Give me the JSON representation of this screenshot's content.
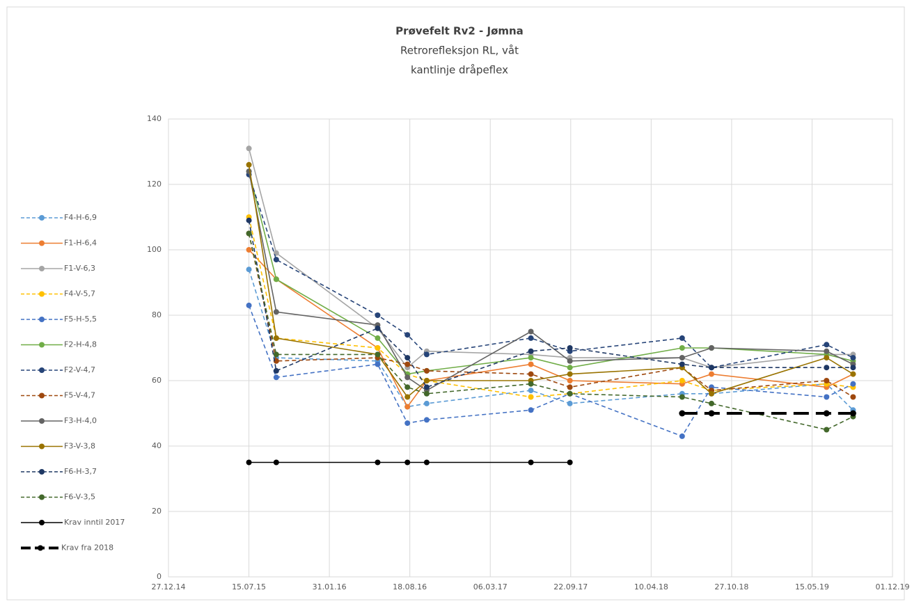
{
  "chart_data": {
    "type": "line",
    "title": "Prøvefelt Rv2 - Jømna",
    "subtitle": [
      "Retrorefleksjon RL, våt",
      "kantlinje dråpeflex"
    ],
    "x": [
      "2015-07-15",
      "2015-09-21",
      "2016-05-30",
      "2016-08-12",
      "2016-09-29",
      "2017-06-15",
      "2017-09-20",
      "2018-06-26",
      "2018-09-07",
      "2019-06-20",
      "2019-08-25"
    ],
    "xlim": [
      "2014-12-27",
      "2019-12-01"
    ],
    "xticks": [
      {
        "value": "2014-12-27",
        "label": "27.12.14"
      },
      {
        "value": "2015-07-15",
        "label": "15.07.15"
      },
      {
        "value": "2016-01-31",
        "label": "31.01.16"
      },
      {
        "value": "2016-08-18",
        "label": "18.08.16"
      },
      {
        "value": "2017-03-06",
        "label": "06.03.17"
      },
      {
        "value": "2017-09-22",
        "label": "22.09.17"
      },
      {
        "value": "2018-04-10",
        "label": "10.04.18"
      },
      {
        "value": "2018-10-27",
        "label": "27.10.18"
      },
      {
        "value": "2019-05-15",
        "label": "15.05.19"
      },
      {
        "value": "2019-12-01",
        "label": "01.12.19"
      }
    ],
    "ylim": [
      0,
      140
    ],
    "yticks": [
      0,
      20,
      40,
      60,
      80,
      100,
      120,
      140
    ],
    "grid": true,
    "legend": "left",
    "series": [
      {
        "name": "F4-H-6,9",
        "color": "#5b9bd5",
        "dashed": true,
        "values": [
          94,
          67,
          66,
          52,
          53,
          57,
          53,
          56,
          56,
          59,
          51
        ]
      },
      {
        "name": "F1-H-6,4",
        "color": "#ed7d31",
        "dashed": false,
        "values": [
          100,
          91,
          70,
          52,
          60,
          65,
          60,
          59,
          62,
          58,
          62
        ]
      },
      {
        "name": "F1-V-6,3",
        "color": "#a5a5a5",
        "dashed": false,
        "values": [
          131,
          99,
          76,
          64,
          69,
          68,
          67,
          67,
          64,
          68,
          68
        ]
      },
      {
        "name": "F4-V-5,7",
        "color": "#ffc000",
        "dashed": true,
        "values": [
          110,
          73,
          70,
          62,
          60,
          55,
          56,
          60,
          57,
          59,
          58
        ]
      },
      {
        "name": "F5-H-5,5",
        "color": "#4472c4",
        "dashed": true,
        "values": [
          83,
          61,
          65,
          47,
          48,
          51,
          56,
          43,
          58,
          55,
          59
        ]
      },
      {
        "name": "F2-H-4,8",
        "color": "#70ad47",
        "dashed": false,
        "values": [
          124,
          91,
          73,
          62,
          63,
          67,
          64,
          70,
          70,
          68,
          66
        ]
      },
      {
        "name": "F2-V-4,7",
        "color": "#264478",
        "dashed": true,
        "values": [
          123,
          97,
          80,
          74,
          68,
          73,
          69,
          73,
          64,
          71,
          67
        ]
      },
      {
        "name": "F5-V-4,7",
        "color": "#9e480e",
        "dashed": true,
        "values": [
          105,
          66,
          67,
          65,
          63,
          62,
          58,
          64,
          57,
          60,
          55
        ]
      },
      {
        "name": "F3-H-4,0",
        "color": "#636363",
        "dashed": false,
        "values": [
          124,
          81,
          77,
          61,
          57,
          75,
          66,
          67,
          70,
          69,
          65
        ]
      },
      {
        "name": "F3-V-3,8",
        "color": "#997300",
        "dashed": false,
        "values": [
          126,
          73,
          68,
          55,
          60,
          60,
          62,
          64,
          56,
          67,
          62
        ]
      },
      {
        "name": "F6-H-3,7",
        "color": "#1f3864",
        "dashed": true,
        "values": [
          109,
          63,
          76,
          67,
          58,
          69,
          70,
          65,
          64,
          64,
          64
        ]
      },
      {
        "name": "F6-V-3,5",
        "color": "#43682b",
        "dashed": true,
        "values": [
          105,
          68,
          68,
          58,
          56,
          59,
          56,
          55,
          53,
          45,
          49
        ]
      },
      {
        "name": "Krav inntil 2017",
        "color": "#000000",
        "dashed": false,
        "values": [
          35,
          35,
          35,
          35,
          35,
          35,
          35,
          null,
          null,
          null,
          null
        ]
      },
      {
        "name": "Krav fra 2018",
        "color": "#000000",
        "dashed": true,
        "thick": true,
        "values": [
          null,
          null,
          null,
          null,
          null,
          null,
          null,
          50,
          50,
          50,
          50
        ]
      }
    ]
  }
}
